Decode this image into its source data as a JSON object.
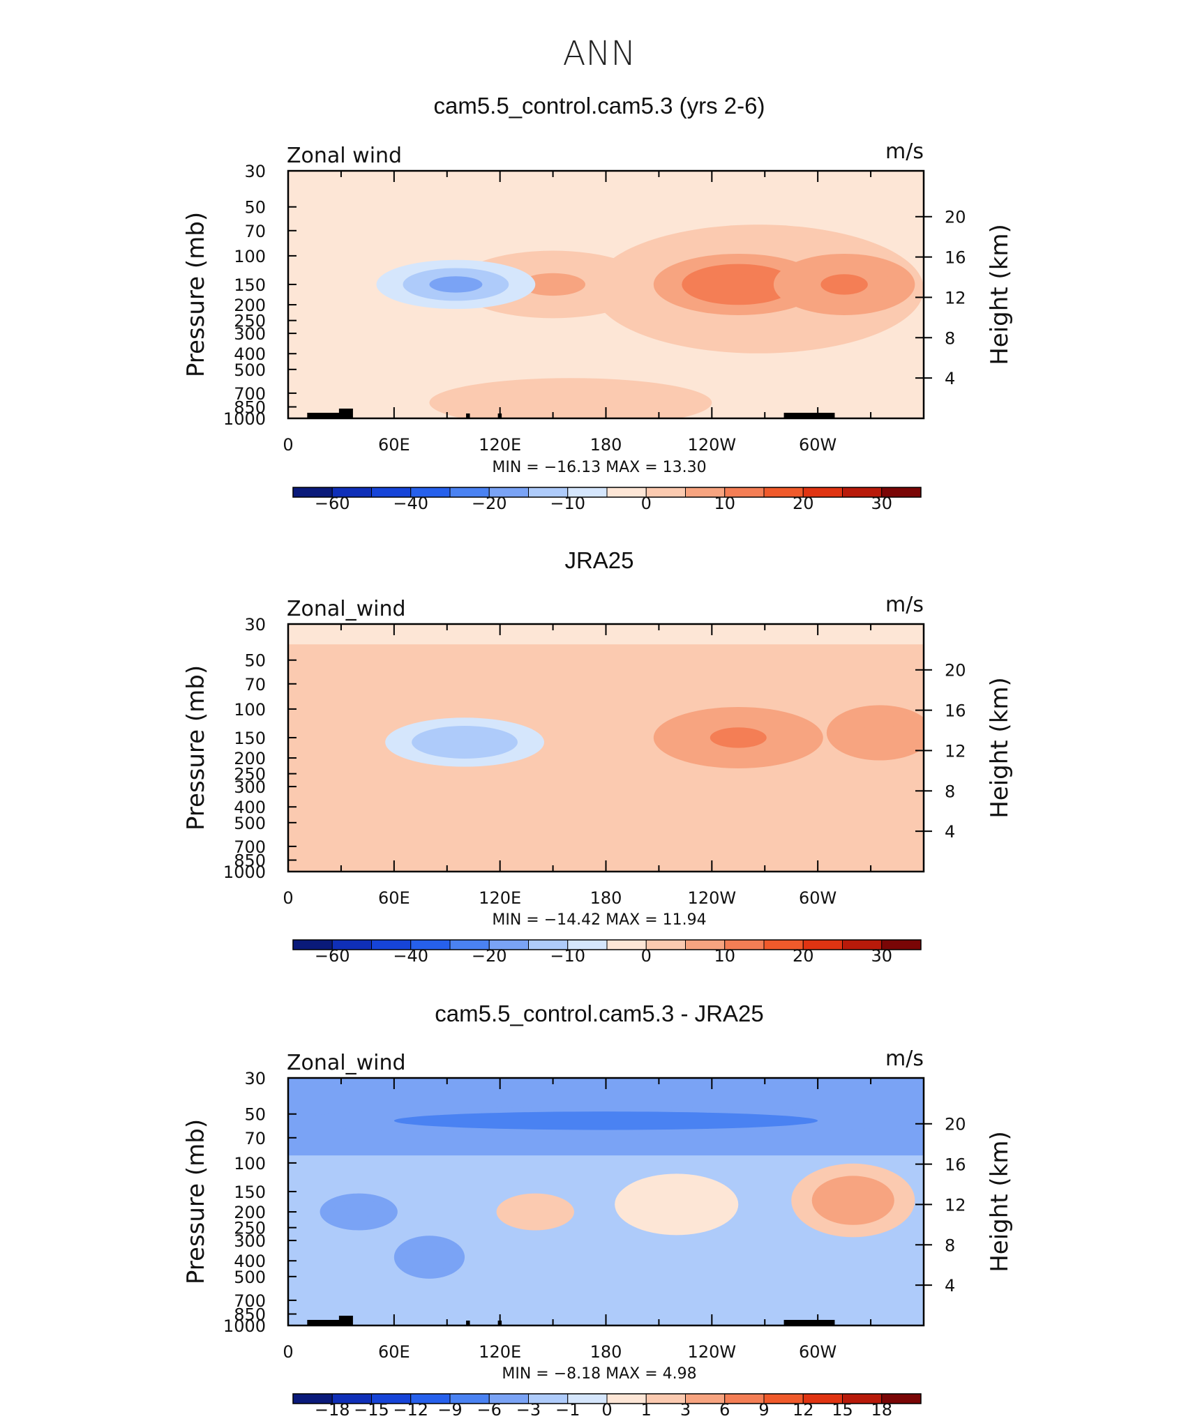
{
  "page_title": "ANN",
  "colors": {
    "levels_main": [
      "#0a1a7a",
      "#0f2fb8",
      "#1644d8",
      "#2660ec",
      "#4a82f2",
      "#7aa3f5",
      "#aecbfa",
      "#d5e6fc",
      "#fde6d6",
      "#fbcab0",
      "#f7a480",
      "#f47e55",
      "#f05a2b",
      "#e03412",
      "#b81a0a",
      "#7a0606"
    ],
    "levels_diff": [
      "#0a1a7a",
      "#0f2fb8",
      "#1644d8",
      "#2660ec",
      "#4a82f2",
      "#7aa3f5",
      "#aecbfa",
      "#d5e6fc",
      "#fde6d6",
      "#fbcab0",
      "#f7a480",
      "#f47e55",
      "#f05a2b",
      "#e03412",
      "#b81a0a",
      "#7a0606"
    ]
  },
  "chart_data": [
    {
      "type": "heatmap",
      "title": "cam5.5_control.cam5.3 (yrs 2-6)",
      "left_label": "Zonal wind",
      "right_label": "m/s",
      "ylabel": "Pressure (mb)",
      "ylabel_right": "Height (km)",
      "x_ticks": [
        "0",
        "60E",
        "120E",
        "180",
        "120W",
        "60W"
      ],
      "y_ticks": [
        "30",
        "50",
        "70",
        "100",
        "150",
        "200",
        "250",
        "300",
        "400",
        "500",
        "700",
        "850",
        "1000"
      ],
      "y2_ticks": [
        "20",
        "16",
        "12",
        "8",
        "4"
      ],
      "stats": {
        "min_label": "MIN",
        "min": "−16.13",
        "max_label": "MAX",
        "max": "13.30"
      },
      "colorbar_labels": [
        "−60",
        "−40",
        "−20",
        "−10",
        "0",
        "10",
        "20",
        "30"
      ],
      "x_domain": [
        0,
        360
      ],
      "features": [
        {
          "lon": 150,
          "p": 150,
          "w": 55,
          "h": 2.2,
          "value": 5
        },
        {
          "lon": 255,
          "p": 150,
          "w": 48,
          "h": 2.0,
          "value": 13.3
        },
        {
          "lon": 315,
          "p": 150,
          "w": 40,
          "h": 2.0,
          "value": 12
        },
        {
          "lon": 95,
          "p": 150,
          "w": 45,
          "h": 1.6,
          "value": -16.13
        },
        {
          "lon": 160,
          "p": 800,
          "w": 80,
          "h": 1.6,
          "value": 3
        }
      ]
    },
    {
      "type": "heatmap",
      "title": "JRA25",
      "left_label": "Zonal_wind",
      "right_label": "m/s",
      "ylabel": "Pressure (mb)",
      "ylabel_right": "Height (km)",
      "x_ticks": [
        "0",
        "60E",
        "120E",
        "180",
        "120W",
        "60W"
      ],
      "y_ticks": [
        "30",
        "50",
        "70",
        "100",
        "150",
        "200",
        "250",
        "300",
        "400",
        "500",
        "700",
        "850",
        "1000"
      ],
      "y2_ticks": [
        "20",
        "16",
        "12",
        "8",
        "4"
      ],
      "stats": {
        "min_label": "MIN",
        "min": "−14.42",
        "max_label": "MAX",
        "max": "11.94"
      },
      "colorbar_labels": [
        "−60",
        "−40",
        "−20",
        "−10",
        "0",
        "10",
        "20",
        "30"
      ],
      "x_domain": [
        0,
        360
      ],
      "features": [
        {
          "lon": 255,
          "p": 150,
          "w": 48,
          "h": 2.0,
          "value": 11.94
        },
        {
          "lon": 335,
          "p": 140,
          "w": 30,
          "h": 1.8,
          "value": 9
        },
        {
          "lon": 100,
          "p": 160,
          "w": 45,
          "h": 1.6,
          "value": -14.42
        }
      ]
    },
    {
      "type": "heatmap",
      "title": "cam5.5_control.cam5.3 - JRA25",
      "left_label": "Zonal_wind",
      "right_label": "m/s",
      "ylabel": "Pressure (mb)",
      "ylabel_right": "Height (km)",
      "x_ticks": [
        "0",
        "60E",
        "120E",
        "180",
        "120W",
        "60W"
      ],
      "y_ticks": [
        "30",
        "50",
        "70",
        "100",
        "150",
        "200",
        "250",
        "300",
        "400",
        "500",
        "700",
        "850",
        "1000"
      ],
      "y2_ticks": [
        "20",
        "16",
        "12",
        "8",
        "4"
      ],
      "stats": {
        "min_label": "MIN",
        "min": "−8.18",
        "max_label": "MAX",
        "max": "4.98"
      },
      "colorbar_labels": [
        "−18",
        "−15",
        "−12",
        "−9",
        "−6",
        "−3",
        "−1",
        "0",
        "1",
        "3",
        "6",
        "9",
        "12",
        "15",
        "18"
      ],
      "x_domain": [
        0,
        360
      ],
      "features": [
        {
          "lon": 180,
          "p": 55,
          "w": 180,
          "h": 0.9,
          "value": -8.18
        },
        {
          "lon": 320,
          "p": 170,
          "w": 35,
          "h": 2.4,
          "value": 4.98
        },
        {
          "lon": 40,
          "p": 200,
          "w": 22,
          "h": 1.2,
          "value": -6
        },
        {
          "lon": 80,
          "p": 380,
          "w": 20,
          "h": 1.4,
          "value": -6
        },
        {
          "lon": 140,
          "p": 200,
          "w": 22,
          "h": 1.2,
          "value": 2
        },
        {
          "lon": 220,
          "p": 180,
          "w": 35,
          "h": 2.0,
          "value": 0.5
        }
      ]
    }
  ]
}
